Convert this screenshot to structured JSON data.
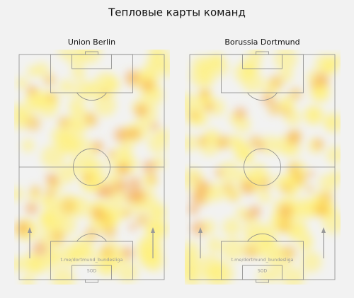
{
  "header": {
    "title": "Тепловые карты команд"
  },
  "panels": [
    {
      "title": "Union Berlin",
      "watermark": "t.me/dortmund_bundesliga",
      "logo": "SOD"
    },
    {
      "title": "Borussia Dortmund",
      "watermark": "t.me/dortmund_bundesliga",
      "logo": "SOD"
    }
  ]
}
